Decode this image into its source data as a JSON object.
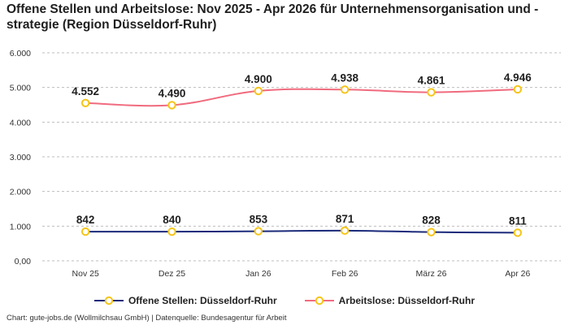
{
  "title": "Offene Stellen und Arbeitslose: Nov 2025 - Apr 2026 für Unternehmensorganisation und -strategie (Region Düsseldorf-Ruhr)",
  "caption": "Chart: gute-jobs.de (Wollmilchsau GmbH) | Datenquelle: Bundesagentur für Arbeit",
  "chart_data": {
    "type": "line",
    "title": "Offene Stellen und Arbeitslose: Nov 2025 - Apr 2026 für Unternehmensorganisation und -strategie (Region Düsseldorf-Ruhr)",
    "categories": [
      "Nov 25",
      "Dez 25",
      "Jan 26",
      "Feb 26",
      "März 26",
      "Apr 26"
    ],
    "y_ticks": [
      "0,00",
      "1.000",
      "2.000",
      "3.000",
      "4.000",
      "5.000",
      "6.000"
    ],
    "ylim": [
      0,
      6000
    ],
    "grid": true,
    "legend_position": "bottom",
    "series": [
      {
        "name": "Offene Stellen: Düsseldorf-Ruhr",
        "values": [
          842,
          840,
          853,
          871,
          828,
          811
        ],
        "labels": [
          "842",
          "840",
          "853",
          "871",
          "828",
          "811"
        ],
        "color": "#1b2a7a"
      },
      {
        "name": "Arbeitslose: Düsseldorf-Ruhr",
        "values": [
          4552,
          4490,
          4900,
          4938,
          4861,
          4946
        ],
        "labels": [
          "4.552",
          "4.490",
          "4.900",
          "4.938",
          "4.861",
          "4.946"
        ],
        "color": "#f06b7e"
      }
    ],
    "marker_color": "#f5c518"
  }
}
